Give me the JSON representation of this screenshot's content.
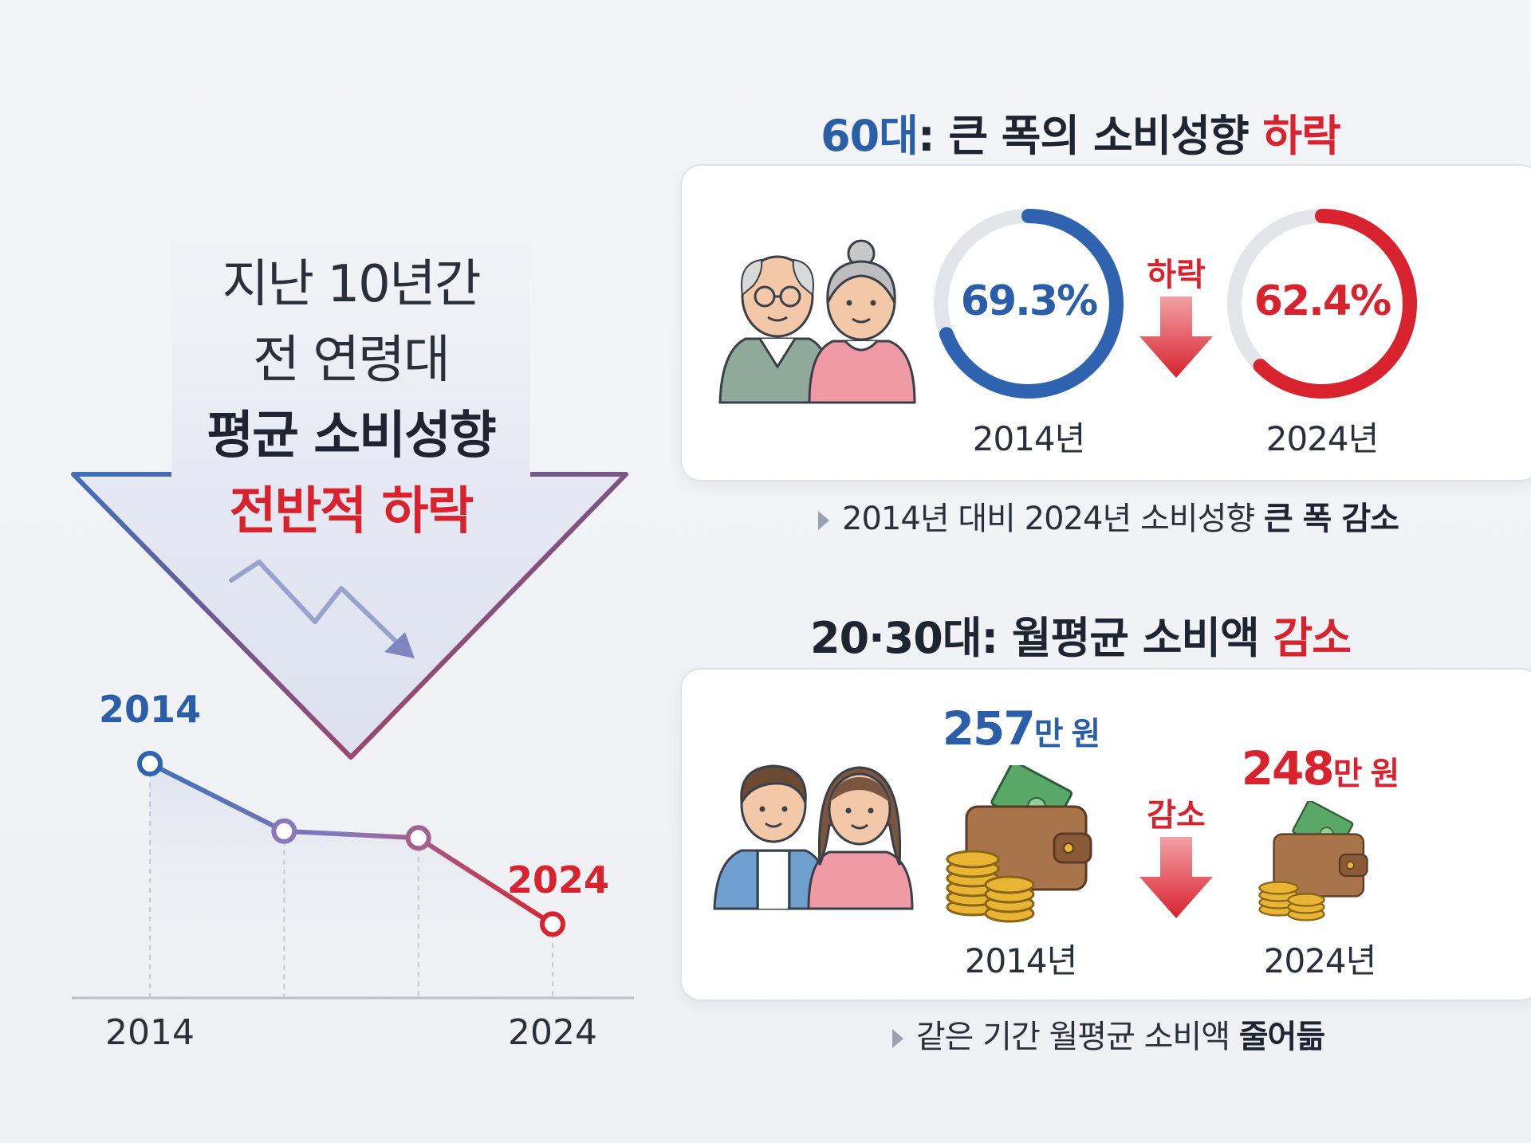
{
  "headline": {
    "line1": "지난 10년간",
    "line2": "전 연령대",
    "line3": "평균 소비성향",
    "line4": "전반적 하락"
  },
  "trend_chart": {
    "start_label": "2014",
    "end_label": "2024",
    "axis_start": "2014",
    "axis_end": "2024",
    "points": [
      100,
      60,
      56,
      5
    ]
  },
  "section_60s": {
    "title_prefix": "60대",
    "title_mid": ": 큰 폭의 소비성향 ",
    "title_accent": "하락",
    "value_2014": "69.3%",
    "value_2024": "62.4%",
    "year_2014": "2014년",
    "year_2024": "2024년",
    "change_label": "하락",
    "ring_2014_fraction": 0.693,
    "ring_2024_fraction": 0.624,
    "note_plain": "2014년 대비 2024년 소비성향 ",
    "note_bold": "큰 폭 감소"
  },
  "section_2030s": {
    "title_prefix": "20·30대",
    "title_mid": ": 월평균 소비액 ",
    "title_accent": "감소",
    "amount_2014_num": "257",
    "amount_2014_unit": "만 원",
    "amount_2024_num": "248",
    "amount_2024_unit": "만 원",
    "year_2014": "2014년",
    "year_2024": "2024년",
    "change_label": "감소",
    "note_plain": "같은 기간 월평균 소비액 ",
    "note_bold": "줄어듦"
  },
  "colors": {
    "blue": "#2a5ea8",
    "red": "#d8232e",
    "ring_track": "#e3e5ea",
    "gold": "#e8b634",
    "wallet": "#a9744a",
    "cash": "#4c9a5a"
  },
  "icons": {
    "seniors": "elderly-couple-icon",
    "youth": "young-couple-icon",
    "money": "wallet-coins-icon",
    "down": "down-arrow-icon"
  }
}
